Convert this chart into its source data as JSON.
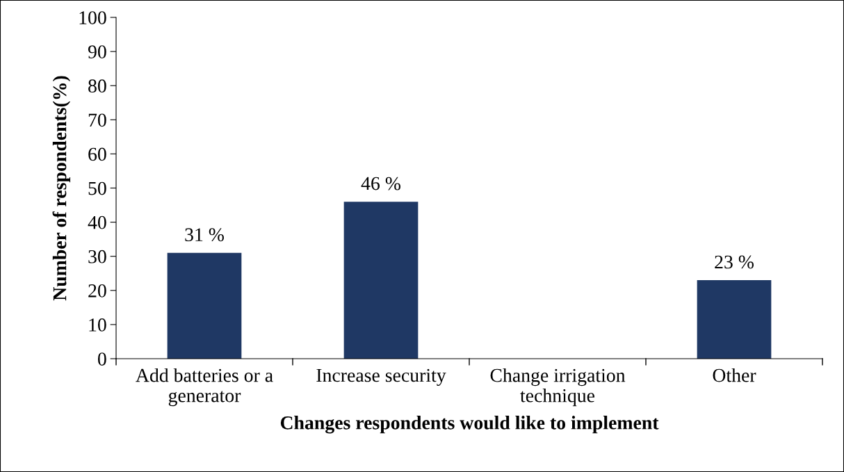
{
  "chart_data": {
    "type": "bar",
    "categories": [
      "Add batteries or a\ngenerator",
      "Increase security",
      "Change irrigation\ntechnique",
      "Other"
    ],
    "values": [
      31,
      46,
      0,
      23
    ],
    "value_labels": [
      "31 %",
      "46 %",
      null,
      "23 %"
    ],
    "color": "#1f3864",
    "xlabel": "Changes respondents would like to implement",
    "ylabel": "Number of respondents(%)",
    "ylim": [
      0,
      100
    ],
    "yticks": [
      0,
      10,
      20,
      30,
      40,
      50,
      60,
      70,
      80,
      90,
      100
    ],
    "grid": false,
    "legend": false
  }
}
